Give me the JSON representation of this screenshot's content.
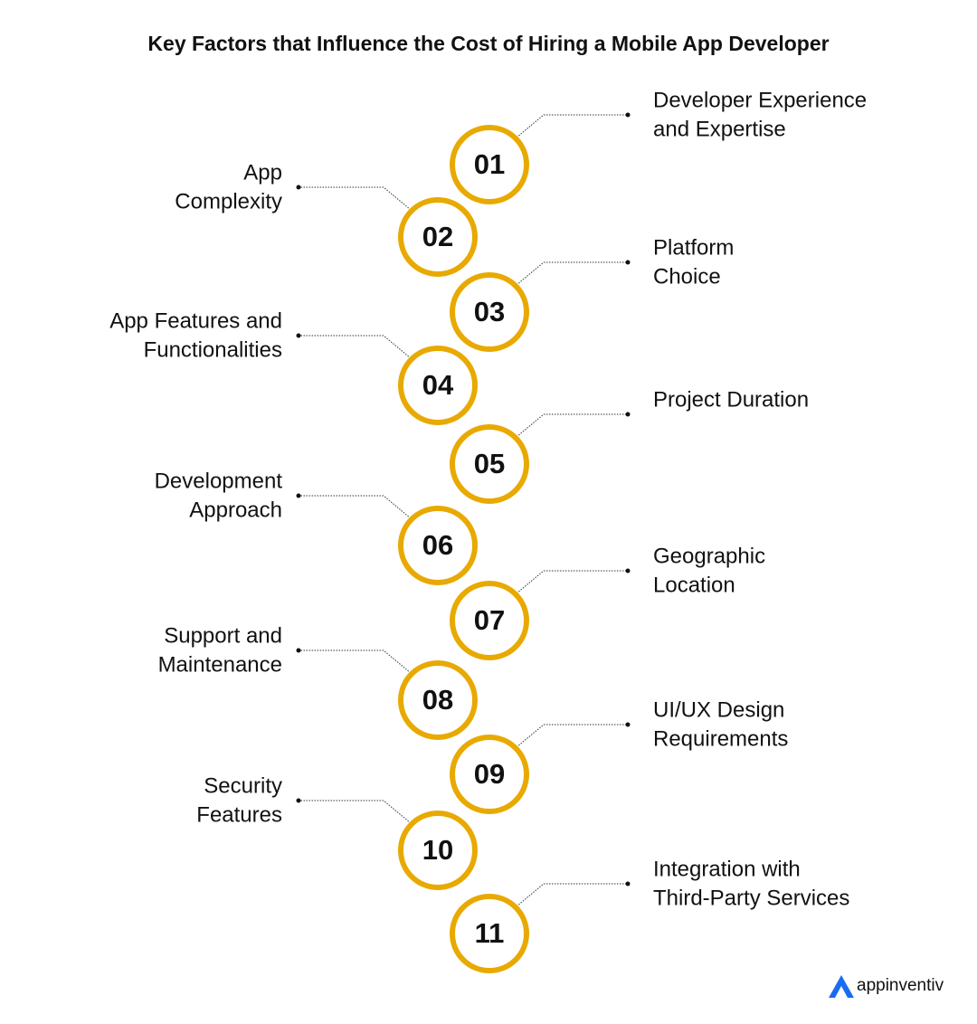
{
  "title": "Key Factors that Influence the Cost of Hiring a Mobile App Developer",
  "items": [
    {
      "number": "01",
      "label": [
        "Developer Experience",
        "and Expertise"
      ]
    },
    {
      "number": "02",
      "label": [
        "App",
        "Complexity"
      ]
    },
    {
      "number": "03",
      "label": [
        "Platform",
        "Choice"
      ]
    },
    {
      "number": "04",
      "label": [
        "App Features and",
        "Functionalities"
      ]
    },
    {
      "number": "05",
      "label": [
        "Project Duration"
      ]
    },
    {
      "number": "06",
      "label": [
        "Development",
        "Approach"
      ]
    },
    {
      "number": "07",
      "label": [
        "Geographic",
        "Location"
      ]
    },
    {
      "number": "08",
      "label": [
        "Support and",
        "Maintenance"
      ]
    },
    {
      "number": "09",
      "label": [
        "UI/UX Design",
        "Requirements"
      ]
    },
    {
      "number": "10",
      "label": [
        "Security",
        "Features"
      ]
    },
    {
      "number": "11",
      "label": [
        "Integration with",
        "Third-Party Services"
      ]
    }
  ],
  "brand": "appinventiv"
}
